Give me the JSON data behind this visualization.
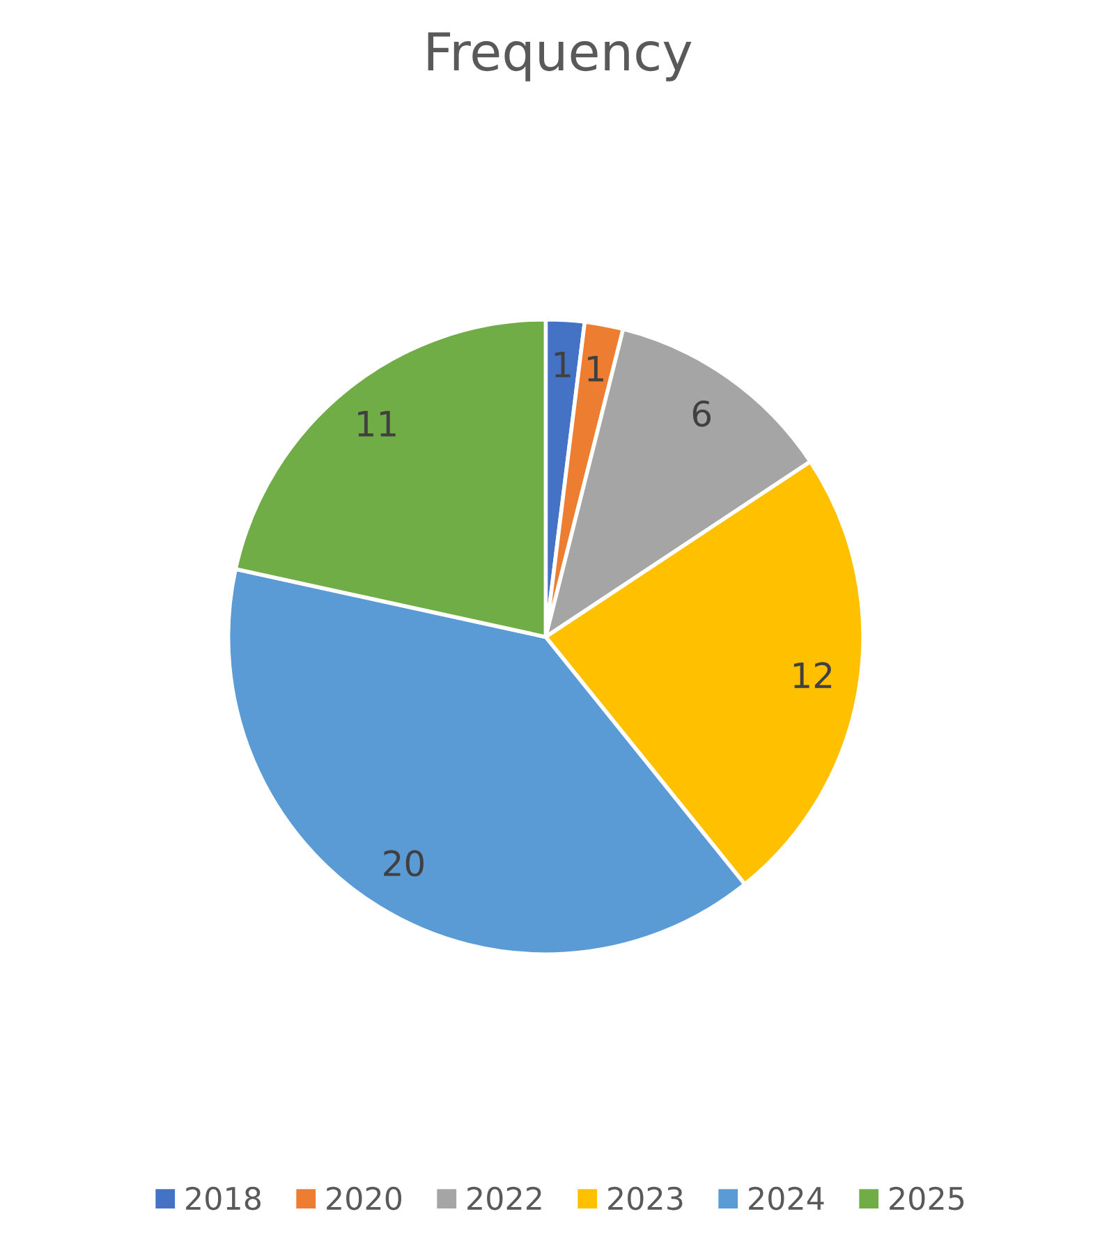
{
  "chart_data": {
    "type": "pie",
    "title": "Frequency",
    "categories": [
      "2018",
      "2020",
      "2022",
      "2023",
      "2024",
      "2025"
    ],
    "values": [
      1,
      1,
      6,
      12,
      20,
      11
    ],
    "colors": [
      "#4472c4",
      "#ed7d31",
      "#a5a5a5",
      "#ffc000",
      "#5b9bd5",
      "#70ad47"
    ],
    "data_labels": true,
    "legend": "bottom"
  }
}
